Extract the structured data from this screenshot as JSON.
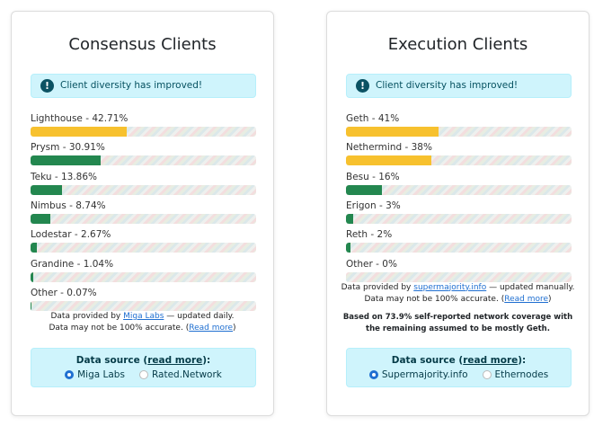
{
  "cards": [
    {
      "title": "Consensus Clients",
      "alert": "Client diversity has improved!",
      "clients": [
        {
          "label": "Lighthouse - 42.71%",
          "value": 42.71,
          "color": "#f7c12e"
        },
        {
          "label": "Prysm - 30.91%",
          "value": 30.91,
          "color": "#23874f"
        },
        {
          "label": "Teku - 13.86%",
          "value": 13.86,
          "color": "#23874f"
        },
        {
          "label": "Nimbus - 8.74%",
          "value": 8.74,
          "color": "#23874f"
        },
        {
          "label": "Lodestar - 2.67%",
          "value": 2.67,
          "color": "#23874f"
        },
        {
          "label": "Grandine - 1.04%",
          "value": 1.04,
          "color": "#23874f"
        },
        {
          "label": "Other - 0.07%",
          "value": 0.07,
          "color": "#23874f"
        }
      ],
      "footnote": {
        "before": "Data provided by ",
        "link": "Miga Labs",
        "after": " — updated daily."
      },
      "accuracy": {
        "before": "Data may not be 100% accurate. (",
        "link": "Read more",
        "after": ")"
      },
      "source": {
        "before": "Data source (",
        "link": "read more",
        "after": "):",
        "options": [
          {
            "label": "Miga Labs",
            "selected": true
          },
          {
            "label": "Rated.Network",
            "selected": false
          }
        ]
      }
    },
    {
      "title": "Execution Clients",
      "alert": "Client diversity has improved!",
      "clients": [
        {
          "label": "Geth - 41%",
          "value": 41,
          "color": "#f7c12e"
        },
        {
          "label": "Nethermind - 38%",
          "value": 38,
          "color": "#f7c12e"
        },
        {
          "label": "Besu - 16%",
          "value": 16,
          "color": "#23874f"
        },
        {
          "label": "Erigon - 3%",
          "value": 3,
          "color": "#23874f"
        },
        {
          "label": "Reth - 2%",
          "value": 2,
          "color": "#23874f"
        },
        {
          "label": "Other - 0%",
          "value": 0,
          "color": "#23874f"
        }
      ],
      "footnote": {
        "before": "Data provided by ",
        "link": "supermajority.info",
        "after": " — updated manually."
      },
      "accuracy": {
        "before": "Data may not be 100% accurate. (",
        "link": "Read more",
        "after": ")"
      },
      "note": "Based on 73.9% self-reported network coverage with the remaining assumed to be mostly Geth.",
      "source": {
        "before": "Data source (",
        "link": "read more",
        "after": "):",
        "options": [
          {
            "label": "Supermajority.info",
            "selected": true
          },
          {
            "label": "Ethernodes",
            "selected": false
          }
        ]
      }
    }
  ]
}
